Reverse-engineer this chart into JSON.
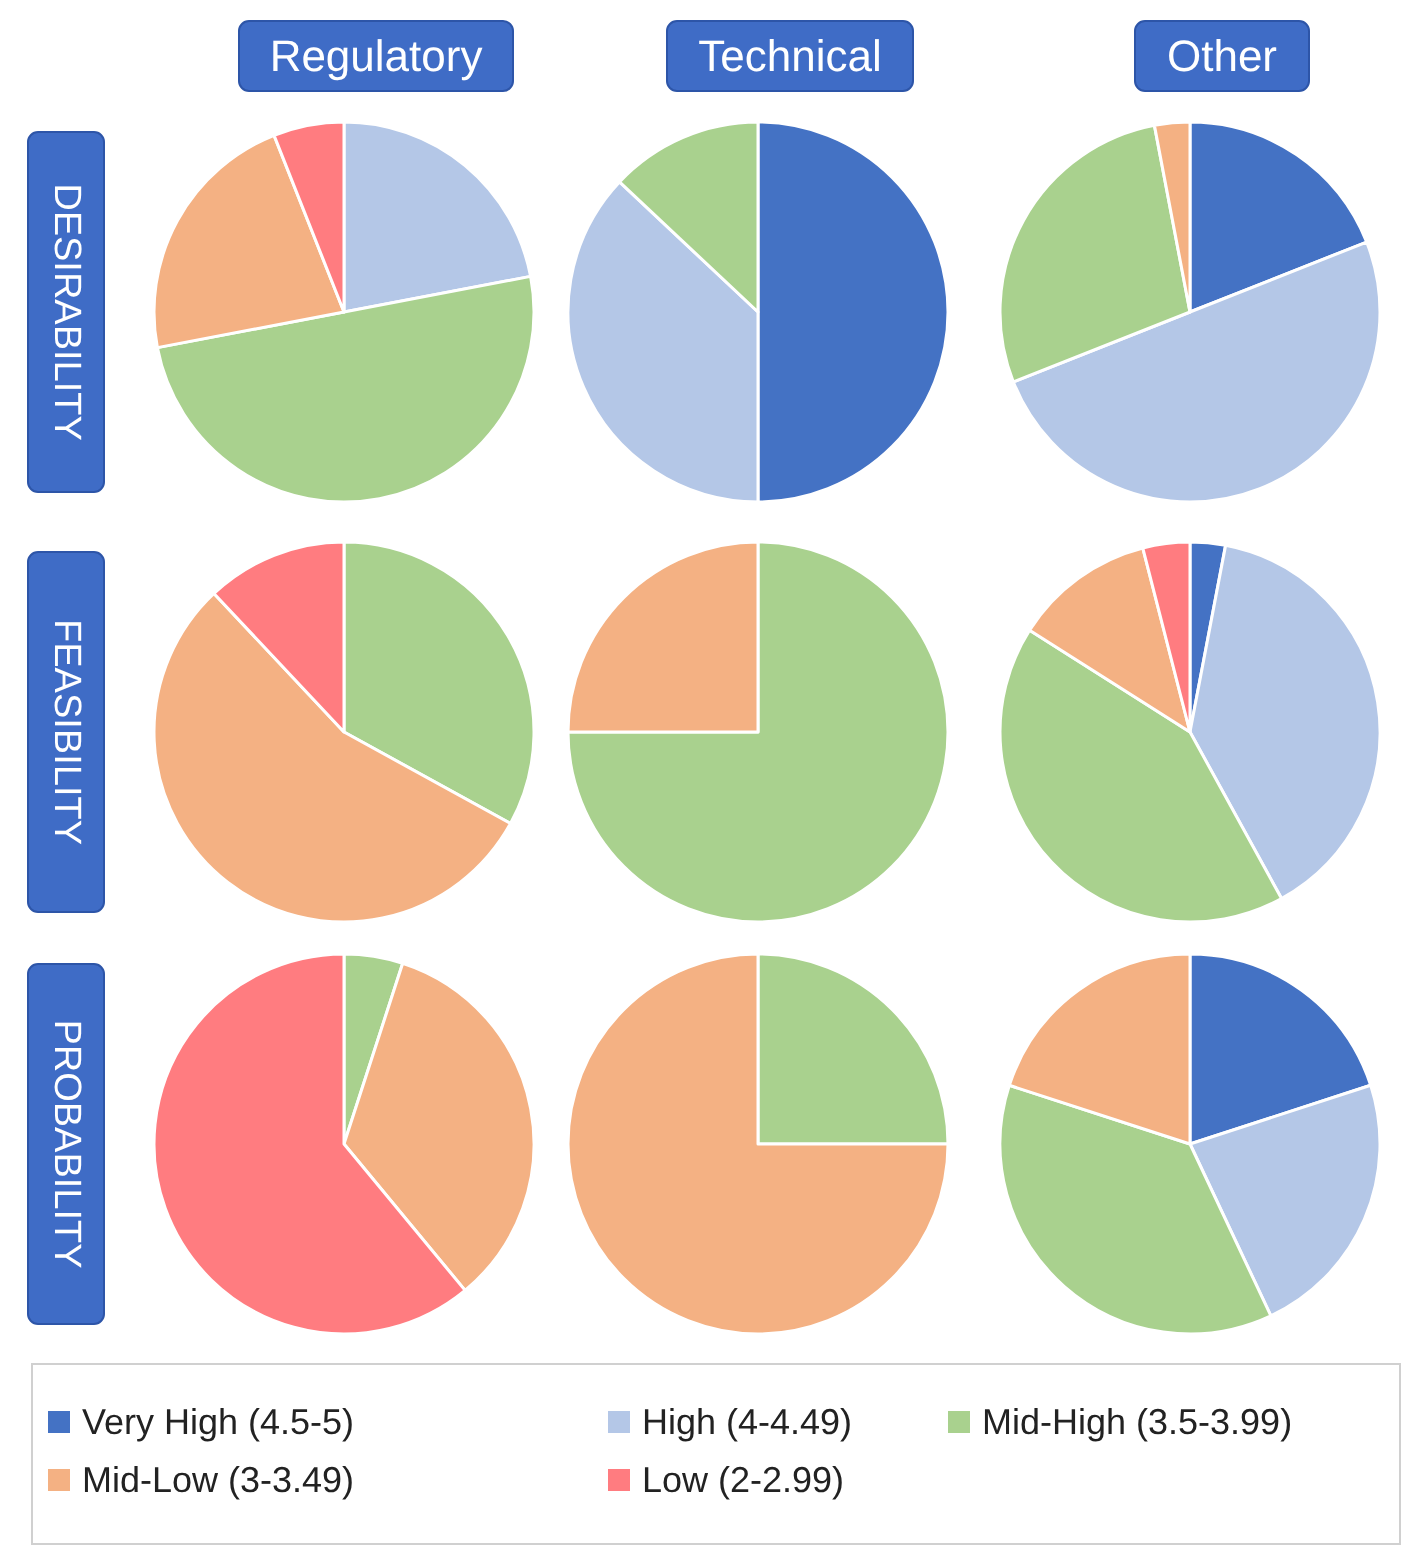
{
  "chart_data": [
    {
      "type": "pie",
      "title": "Regulatory",
      "ylabel": "DESIRABILITY",
      "categories": [
        null,
        null,
        null,
        null
      ],
      "values": [
        22,
        50,
        22,
        6
      ],
      "colors": [
        "#b4c7e7",
        "#a9d18e",
        "#f4b183",
        "#ff7c80"
      ]
    },
    {
      "type": "pie",
      "title": "Technical",
      "categories": [
        null,
        null,
        null
      ],
      "values": [
        50,
        37,
        13
      ],
      "colors": [
        "#4472c4",
        "#b4c7e7",
        "#a9d18e"
      ]
    },
    {
      "type": "pie",
      "title": "Other",
      "categories": [
        null,
        null,
        null,
        null
      ],
      "values": [
        19,
        50,
        28,
        3
      ],
      "colors": [
        "#4472c4",
        "#b4c7e7",
        "#a9d18e",
        "#f4b183"
      ]
    },
    {
      "type": "pie",
      "ylabel": "FEASIBILITY",
      "categories": [
        null,
        null,
        null
      ],
      "values": [
        33,
        55,
        12
      ],
      "colors": [
        "#a9d18e",
        "#f4b183",
        "#ff7c80"
      ]
    },
    {
      "type": "pie",
      "categories": [
        null,
        null
      ],
      "values": [
        75,
        25
      ],
      "colors": [
        "#a9d18e",
        "#f4b183"
      ]
    },
    {
      "type": "pie",
      "legend": "bottom",
      "categories": [
        "Very High (4.5-5)",
        "High (4-4.49)",
        "Mid-High (3.5-3.99)",
        "Mid-Low (3-3.49)",
        "Low (2-2.99)"
      ],
      "values": [
        3,
        39,
        42,
        12,
        4
      ],
      "colors": [
        "#4472c4",
        "#b4c7e7",
        "#a9d18e",
        "#f4b183",
        "#ff7c80"
      ]
    },
    {
      "type": "pie",
      "ylabel": "PROBABILITY",
      "categories": [
        null,
        null,
        null
      ],
      "values": [
        5,
        34,
        61
      ],
      "colors": [
        "#a9d18e",
        "#f4b183",
        "#ff7c80"
      ]
    },
    {
      "type": "pie",
      "categories": [
        null,
        null
      ],
      "values": [
        25,
        75
      ],
      "colors": [
        "#a9d18e",
        "#f4b183"
      ]
    },
    {
      "type": "pie",
      "categories": [
        null,
        null,
        null,
        null
      ],
      "values": [
        20,
        23,
        37,
        20
      ],
      "colors": [
        "#4472c4",
        "#b4c7e7",
        "#a9d18e",
        "#f4b183"
      ]
    }
  ]
}
